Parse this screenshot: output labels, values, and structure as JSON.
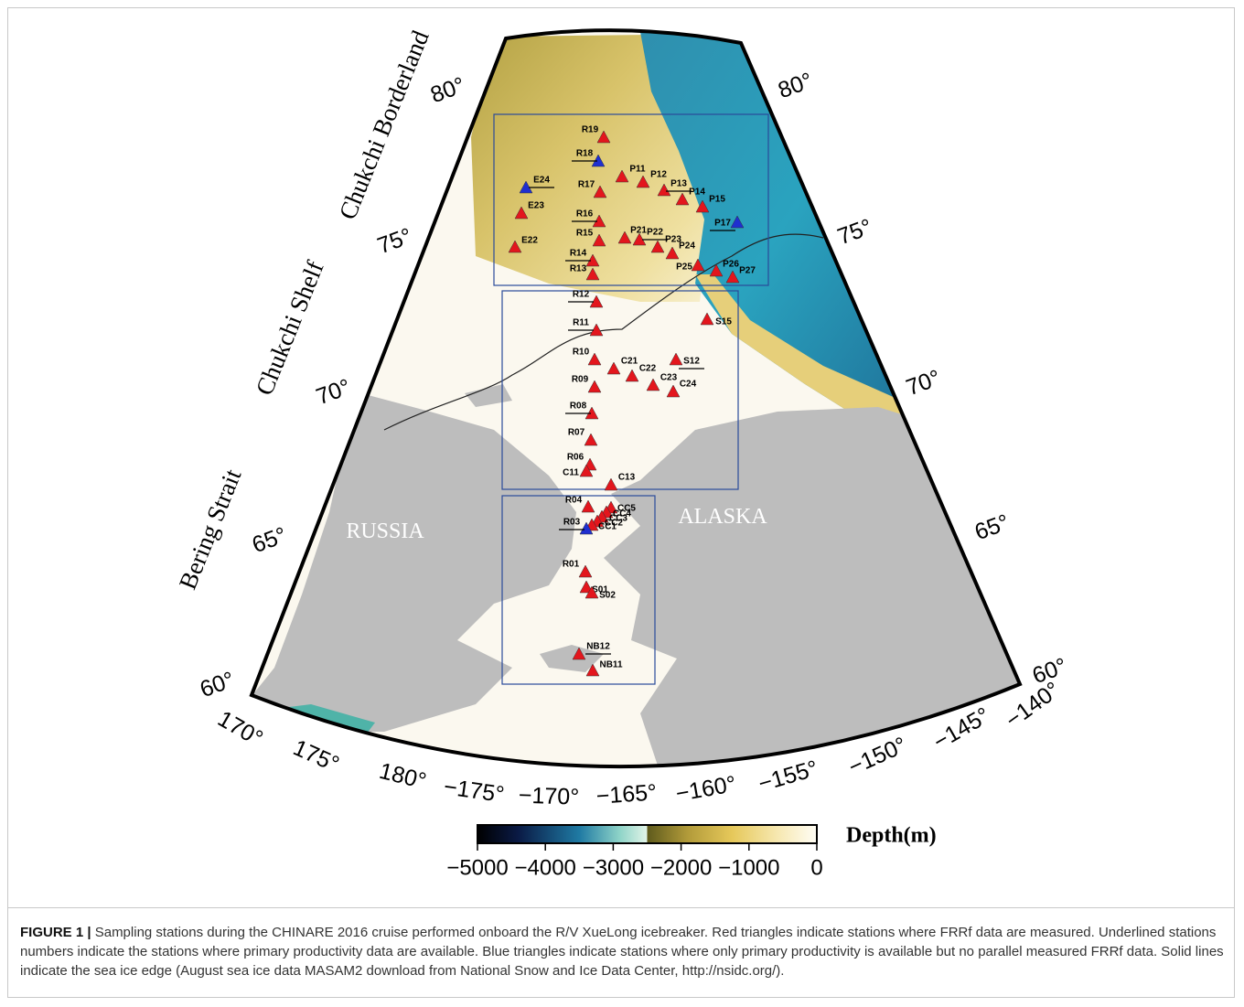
{
  "map": {
    "region_labels": [
      "Chukchi Borderland",
      "Chukchi Shelf",
      "Bering Strait"
    ],
    "countries": [
      "RUSSIA",
      "ALASKA"
    ],
    "latitude_labels": [
      "80°",
      "75°",
      "70°",
      "65°",
      "60°"
    ],
    "longitude_labels": [
      "170°",
      "175°",
      "180°",
      "−175°",
      "−170°",
      "−165°",
      "−160°",
      "−155°",
      "−150°",
      "−145°",
      "−140°"
    ],
    "stations": [
      {
        "name": "R19",
        "color": "#e3161d",
        "underlined": false
      },
      {
        "name": "R18",
        "color": "#1f2fd0",
        "underlined": true
      },
      {
        "name": "E24",
        "color": "#1f2fd0",
        "underlined": true
      },
      {
        "name": "P11",
        "color": "#e3161d",
        "underlined": false
      },
      {
        "name": "P12",
        "color": "#e3161d",
        "underlined": false
      },
      {
        "name": "R17",
        "color": "#e3161d",
        "underlined": false
      },
      {
        "name": "P13",
        "color": "#e3161d",
        "underlined": true
      },
      {
        "name": "P14",
        "color": "#e3161d",
        "underlined": false
      },
      {
        "name": "P15",
        "color": "#e3161d",
        "underlined": false
      },
      {
        "name": "E23",
        "color": "#e3161d",
        "underlined": false
      },
      {
        "name": "R16",
        "color": "#e3161d",
        "underlined": true
      },
      {
        "name": "P17",
        "color": "#1f2fd0",
        "underlined": true
      },
      {
        "name": "R15",
        "color": "#e3161d",
        "underlined": false
      },
      {
        "name": "P21",
        "color": "#e3161d",
        "underlined": false
      },
      {
        "name": "P22",
        "color": "#e3161d",
        "underlined": true
      },
      {
        "name": "P23",
        "color": "#e3161d",
        "underlined": false
      },
      {
        "name": "E22",
        "color": "#e3161d",
        "underlined": false
      },
      {
        "name": "P24",
        "color": "#e3161d",
        "underlined": false
      },
      {
        "name": "R14",
        "color": "#e3161d",
        "underlined": true
      },
      {
        "name": "P25",
        "color": "#e3161d",
        "underlined": false
      },
      {
        "name": "R13",
        "color": "#e3161d",
        "underlined": false
      },
      {
        "name": "P26",
        "color": "#e3161d",
        "underlined": false
      },
      {
        "name": "P27",
        "color": "#e3161d",
        "underlined": false
      },
      {
        "name": "R12",
        "color": "#e3161d",
        "underlined": true
      },
      {
        "name": "S15",
        "color": "#e3161d",
        "underlined": false
      },
      {
        "name": "R11",
        "color": "#e3161d",
        "underlined": true
      },
      {
        "name": "S12",
        "color": "#e3161d",
        "underlined": true
      },
      {
        "name": "R10",
        "color": "#e3161d",
        "underlined": false
      },
      {
        "name": "C21",
        "color": "#e3161d",
        "underlined": false
      },
      {
        "name": "C22",
        "color": "#e3161d",
        "underlined": false
      },
      {
        "name": "R09",
        "color": "#e3161d",
        "underlined": false
      },
      {
        "name": "C23",
        "color": "#e3161d",
        "underlined": false
      },
      {
        "name": "C24",
        "color": "#e3161d",
        "underlined": false
      },
      {
        "name": "R08",
        "color": "#e3161d",
        "underlined": true
      },
      {
        "name": "R07",
        "color": "#e3161d",
        "underlined": false
      },
      {
        "name": "R06",
        "color": "#e3161d",
        "underlined": false
      },
      {
        "name": "C11",
        "color": "#e3161d",
        "underlined": false
      },
      {
        "name": "C13",
        "color": "#e3161d",
        "underlined": false
      },
      {
        "name": "R04",
        "color": "#e3161d",
        "underlined": false
      },
      {
        "name": "CC5",
        "color": "#e3161d",
        "underlined": false
      },
      {
        "name": "CC4",
        "color": "#e3161d",
        "underlined": false
      },
      {
        "name": "CC3",
        "color": "#e3161d",
        "underlined": false
      },
      {
        "name": "CC2",
        "color": "#e3161d",
        "underlined": false
      },
      {
        "name": "CC1",
        "color": "#e3161d",
        "underlined": false
      },
      {
        "name": "R03",
        "color": "#1f2fd0",
        "underlined": true
      },
      {
        "name": "R01",
        "color": "#e3161d",
        "underlined": false
      },
      {
        "name": "S01",
        "color": "#e3161d",
        "underlined": false
      },
      {
        "name": "S02",
        "color": "#e3161d",
        "underlined": false
      },
      {
        "name": "NB12",
        "color": "#e3161d",
        "underlined": true
      },
      {
        "name": "NB11",
        "color": "#e3161d",
        "underlined": false
      }
    ],
    "colorbar": {
      "title": "Depth(m)",
      "lim": [
        -5000,
        0
      ],
      "ticks": [
        {
          "value": -5000,
          "label": "−5000"
        },
        {
          "value": -4000,
          "label": "−4000"
        },
        {
          "value": -3000,
          "label": "−3000"
        },
        {
          "value": -2000,
          "label": "−2000"
        },
        {
          "value": -1000,
          "label": "−1000"
        },
        0
      ]
    }
  },
  "caption": {
    "label": "FIGURE 1 |",
    "text": "Sampling stations during the CHINARE 2016 cruise performed onboard the R/V XueLong icebreaker. Red triangles indicate stations where FRRf data are measured. Underlined stations numbers indicate the stations where primary productivity data are available. Blue triangles indicate stations where only primary productivity is available but no parallel measured FRRf data. Solid lines indicate the sea ice edge (August sea ice data MASAM2 download from National Snow and Ice Data Center, http://nsidc.org/)."
  }
}
